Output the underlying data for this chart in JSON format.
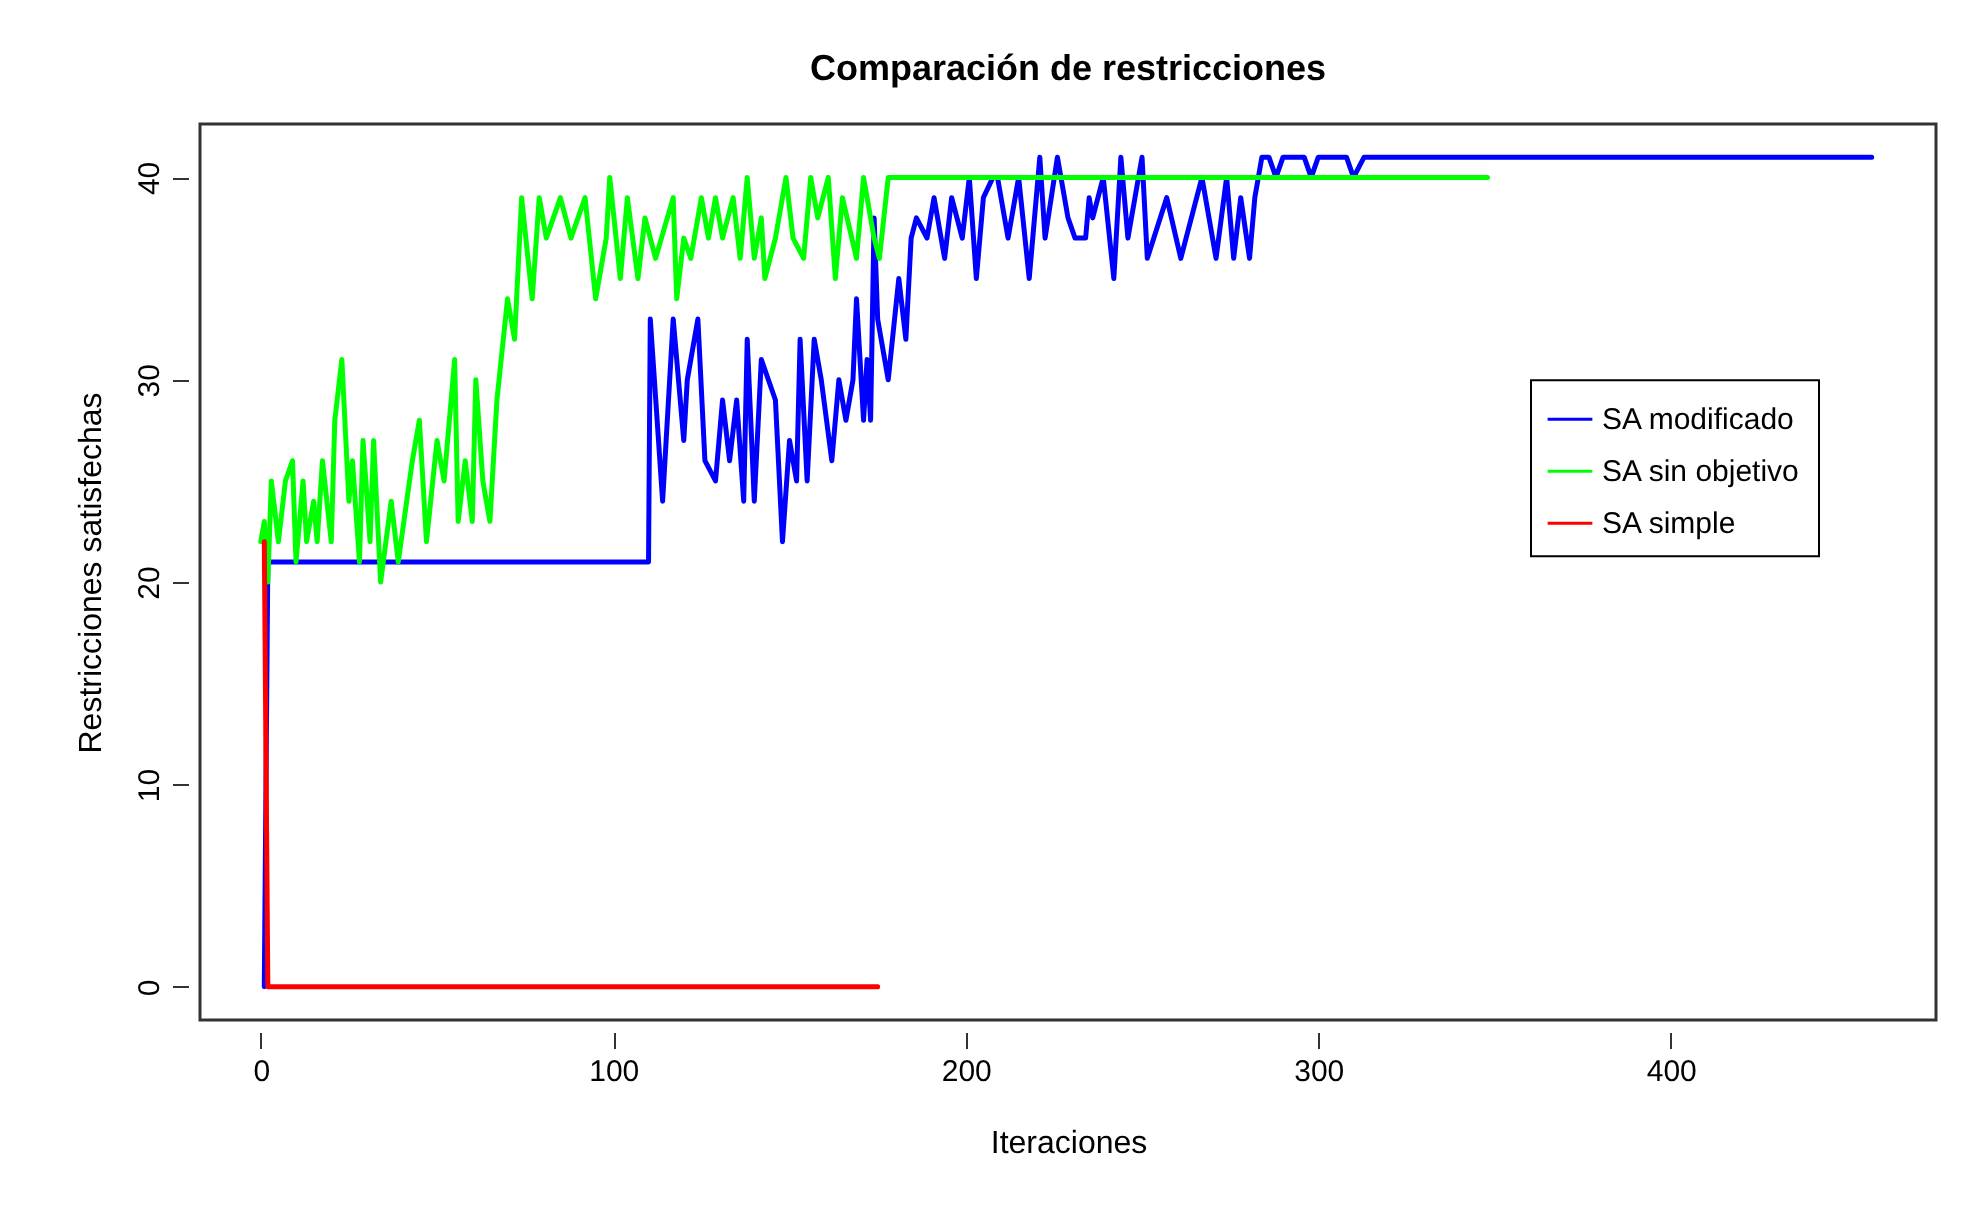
{
  "chart_data": {
    "type": "line",
    "title": "Comparación de restricciones",
    "xlabel": "Iteraciones",
    "ylabel": "Restricciones satisfechas",
    "xlim": [
      -17.24,
      475.24
    ],
    "ylim": [
      -1.64,
      42.64
    ],
    "xticks": [
      0,
      100,
      200,
      300,
      400
    ],
    "yticks": [
      0,
      10,
      20,
      30,
      40
    ],
    "grid": false,
    "legend": "top right",
    "line_style": "solid",
    "marker": "none",
    "series": [
      {
        "name": "SA modificado",
        "color": "#0000ff",
        "x": [
          1,
          2,
          110,
          110.5,
          114,
          115,
          117,
          120,
          121,
          124,
          126,
          129,
          131,
          133,
          135,
          137,
          138,
          140,
          142,
          146,
          148,
          150,
          152,
          153,
          155,
          157,
          159,
          162,
          164,
          166,
          168,
          169,
          171,
          172,
          173,
          174,
          175,
          178,
          181,
          183,
          184.5,
          186,
          189,
          191,
          194,
          196,
          199,
          201,
          203,
          205,
          207.7,
          209,
          212,
          215,
          218,
          221,
          222.5,
          226,
          229,
          231,
          234,
          235,
          236,
          239,
          242,
          244,
          246,
          250,
          251.5,
          257,
          261,
          267,
          271,
          274,
          276,
          278,
          280.5,
          282,
          284,
          286,
          288,
          290,
          296,
          298,
          300,
          308,
          310,
          313,
          457
        ],
        "values": [
          0,
          21,
          21,
          33,
          24,
          27,
          33,
          27,
          30,
          33,
          26,
          25,
          29,
          26,
          29,
          24,
          32,
          24,
          31,
          29,
          22,
          27,
          25,
          32,
          25,
          32,
          30,
          26,
          30,
          28,
          30,
          34,
          28,
          31,
          28,
          38,
          33,
          30,
          35,
          32,
          37,
          38,
          37,
          39,
          36,
          39,
          37,
          40,
          35,
          39,
          40,
          40,
          37,
          40,
          35,
          41,
          37,
          41,
          38,
          37,
          37,
          39,
          38,
          40,
          35,
          41,
          37,
          41,
          36,
          39,
          36,
          40,
          36,
          40,
          36,
          39,
          36,
          39,
          41,
          41,
          40,
          41,
          41,
          40,
          41,
          41,
          40,
          41,
          41
        ]
      },
      {
        "name": "SA sin objetivo",
        "color": "#00ff00",
        "x": [
          0,
          1,
          2,
          3,
          5,
          7,
          9,
          10,
          12,
          13,
          15,
          16,
          17.5,
          20,
          21,
          23,
          25,
          26,
          28,
          29,
          31,
          32,
          34,
          37,
          39,
          43,
          45,
          47,
          50,
          52,
          55,
          56,
          58,
          60,
          61,
          63,
          65,
          67,
          70,
          72,
          74,
          77,
          79,
          81,
          85,
          88,
          92,
          95,
          98,
          99,
          102,
          104,
          107,
          109,
          112,
          117,
          118,
          120,
          122,
          125,
          127,
          129,
          131,
          134,
          136,
          138,
          140,
          142,
          143,
          146,
          149,
          151,
          154,
          156,
          158,
          161,
          163,
          165,
          169,
          171,
          174,
          175.5,
          178,
          348
        ],
        "values": [
          22,
          23,
          20,
          25,
          22,
          25,
          26,
          21,
          25,
          22,
          24,
          22,
          26,
          22,
          28,
          31,
          24,
          26,
          21,
          27,
          22,
          27,
          20,
          24,
          21,
          26,
          28,
          22,
          27,
          25,
          31,
          23,
          26,
          23,
          30,
          25,
          23,
          29,
          34,
          32,
          39,
          34,
          39,
          37,
          39,
          37,
          39,
          34,
          37,
          40,
          35,
          39,
          35,
          38,
          36,
          39,
          34,
          37,
          36,
          39,
          37,
          39,
          37,
          39,
          36,
          40,
          36,
          38,
          35,
          37,
          40,
          37,
          36,
          40,
          38,
          40,
          35,
          39,
          36,
          40,
          37,
          36,
          40,
          40
        ]
      },
      {
        "name": "SA simple",
        "color": "#ff0000",
        "x": [
          1,
          2,
          175
        ],
        "values": [
          22,
          0,
          0
        ]
      }
    ]
  }
}
